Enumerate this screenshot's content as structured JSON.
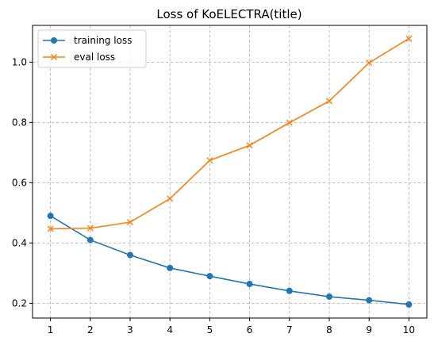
{
  "chart_data": {
    "type": "line",
    "title": "Loss of KoELECTRA(title)",
    "xlabel": "",
    "ylabel": "",
    "x": [
      1,
      2,
      3,
      4,
      5,
      6,
      7,
      8,
      9,
      10
    ],
    "xticks": [
      "1",
      "2",
      "3",
      "4",
      "5",
      "6",
      "7",
      "8",
      "9",
      "10"
    ],
    "yticks": [
      "0.2",
      "0.4",
      "0.6",
      "0.8",
      "1.0"
    ],
    "ytick_values": [
      0.2,
      0.4,
      0.6,
      0.8,
      1.0
    ],
    "xlim": [
      0.55,
      10.45
    ],
    "ylim": [
      0.151,
      1.122
    ],
    "grid": true,
    "legend_position": "top-left",
    "series": [
      {
        "name": "training loss",
        "color": "#1f77b4",
        "marker": "circle",
        "values": [
          0.49,
          0.41,
          0.36,
          0.317,
          0.29,
          0.264,
          0.241,
          0.222,
          0.21,
          0.196
        ]
      },
      {
        "name": "eval loss",
        "color": "#ff7f0e",
        "marker": "x",
        "values": [
          0.447,
          0.449,
          0.469,
          0.547,
          0.674,
          0.724,
          0.799,
          0.871,
          0.998,
          1.078
        ]
      }
    ]
  }
}
